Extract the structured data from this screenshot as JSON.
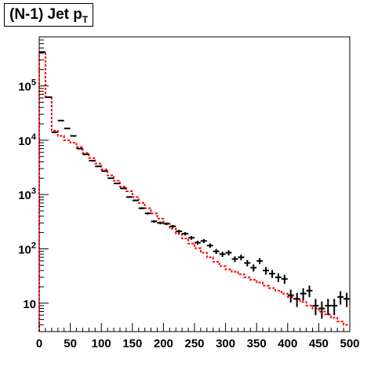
{
  "chart_data": {
    "type": "histogram",
    "title_main": "(N-1) Jet p",
    "title_sub": "T",
    "x_range": [
      0,
      500
    ],
    "bin_width": 10,
    "y_scale": "log",
    "y_range": [
      3,
      800000
    ],
    "x_ticks": [
      0,
      50,
      100,
      150,
      200,
      250,
      300,
      350,
      400,
      450,
      500
    ],
    "y_tick_labels": [
      {
        "value": 10,
        "base": "10",
        "exp": ""
      },
      {
        "value": 100,
        "base": "10",
        "exp": "2"
      },
      {
        "value": 1000,
        "base": "10",
        "exp": "3"
      },
      {
        "value": 10000,
        "base": "10",
        "exp": "4"
      },
      {
        "value": 100000,
        "base": "10",
        "exp": "5"
      }
    ],
    "series": [
      {
        "kind": "data-points",
        "color": "#000000",
        "bin_centers": [
          5,
          15,
          25,
          35,
          45,
          55,
          65,
          75,
          85,
          95,
          105,
          115,
          125,
          135,
          145,
          155,
          165,
          175,
          185,
          195,
          205,
          215,
          225,
          235,
          245,
          255,
          265,
          275,
          285,
          295,
          305,
          315,
          325,
          335,
          345,
          355,
          365,
          375,
          385,
          395,
          405,
          415,
          425,
          435,
          445,
          455,
          465,
          475,
          485,
          495
        ],
        "values": [
          420000,
          62000,
          14000,
          23000,
          16500,
          12000,
          7000,
          5500,
          4200,
          3300,
          2700,
          2000,
          1600,
          1300,
          900,
          780,
          560,
          450,
          320,
          300,
          290,
          260,
          210,
          190,
          160,
          130,
          140,
          115,
          90,
          80,
          85,
          65,
          70,
          55,
          45,
          60,
          40,
          35,
          30,
          28,
          14,
          12,
          15,
          17,
          9,
          8,
          9,
          9,
          13,
          12
        ],
        "x_errors": 5,
        "y_errors": [
          650,
          250,
          120,
          150,
          128,
          110,
          84,
          74,
          65,
          57,
          52,
          45,
          40,
          36,
          30,
          28,
          24,
          21,
          18,
          17,
          17,
          16,
          14,
          14,
          13,
          11,
          12,
          11,
          9.5,
          9,
          9.2,
          8,
          8.4,
          7.4,
          6.7,
          7.7,
          6.3,
          5.9,
          5.5,
          5.3,
          3.7,
          3.5,
          3.9,
          4.1,
          3,
          2.8,
          3,
          3,
          3.6,
          3.5
        ]
      },
      {
        "kind": "step-mc",
        "color": "#ff0000",
        "style": "dashed",
        "values": [
          420000,
          62000,
          15000,
          12000,
          10000,
          9000,
          7500,
          5800,
          4700,
          3700,
          2900,
          2250,
          1800,
          1400,
          1150,
          900,
          700,
          560,
          450,
          360,
          290,
          235,
          190,
          155,
          125,
          103,
          85,
          70,
          58,
          48,
          42,
          38,
          34,
          30,
          27,
          24,
          21,
          19,
          17,
          15,
          13,
          12,
          10.5,
          9,
          8,
          7,
          6.2,
          5.4,
          4.6,
          4
        ]
      }
    ]
  }
}
